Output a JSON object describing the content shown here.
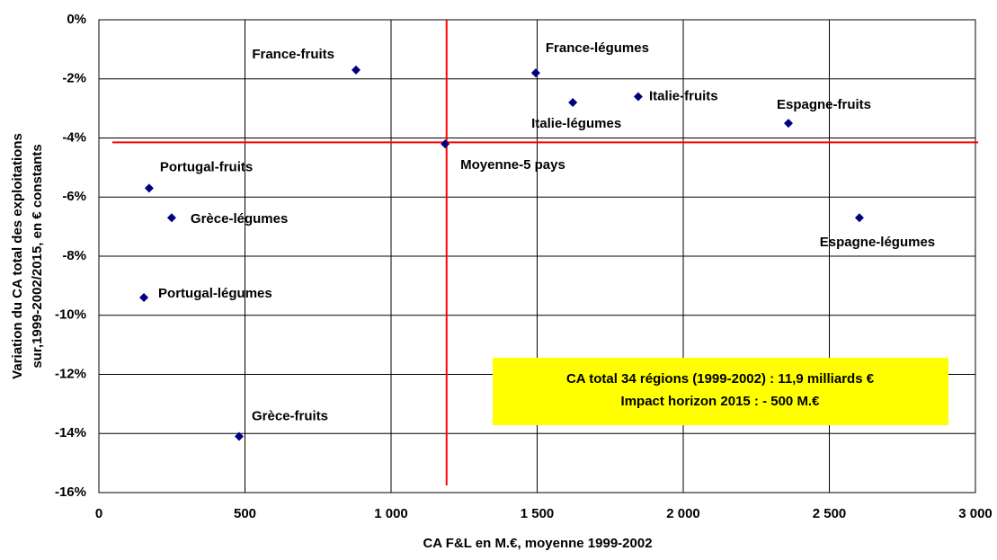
{
  "chart_data": {
    "type": "scatter",
    "xlabel": "CA F&L en M.€, moyenne 1999-2002",
    "ylabel": [
      "Variation du CA total des exploitations",
      "sur,1999-2002/2015, en € constants"
    ],
    "series": [
      {
        "color": "#000080",
        "labels": [
          "France-fruits",
          "France-légumes",
          "Italie-légumes",
          "Italie-fruits",
          "Espagne-fruits",
          "Moyenne-5 pays",
          "Portugal-fruits",
          "Grèce-légumes",
          "Espagne-légumes",
          "Portugal-légumes",
          "Grèce-fruits"
        ],
        "x": [
          880,
          1495,
          1622,
          1846,
          2360,
          1185,
          172,
          249,
          2603,
          154,
          480
        ],
        "values": [
          -1.7,
          -1.8,
          -2.8,
          -2.6,
          -3.5,
          -4.2,
          -5.7,
          -6.7,
          -6.7,
          -9.4,
          -14.1
        ]
      }
    ],
    "reference_lines": {
      "color": "#ff0000",
      "x": 1190,
      "y": -4.15
    },
    "annotation": [
      "CA total 34 régions (1999-2002) : 11,9 milliards €",
      "Impact horizon 2015 : - 500 M.€"
    ],
    "xlim": [
      0,
      3000
    ],
    "xticks": [
      0,
      500,
      {
        "value": 1000,
        "label": "1 000"
      },
      {
        "value": 1500,
        "label": "1 500"
      },
      {
        "value": 2000,
        "label": "2 000"
      },
      {
        "value": 2500,
        "label": "2 500"
      },
      {
        "value": 3000,
        "label": "3 000"
      }
    ],
    "ylim": [
      -16,
      0
    ],
    "yticks": [
      {
        "value": 0,
        "label": "0%"
      },
      {
        "value": -2,
        "label": "-2%"
      },
      {
        "value": -4,
        "label": "-4%"
      },
      {
        "value": -6,
        "label": "-6%"
      },
      {
        "value": -8,
        "label": "-8%"
      },
      {
        "value": -10,
        "label": "-10%"
      },
      {
        "value": -12,
        "label": "-12%"
      },
      {
        "value": -14,
        "label": "-14%"
      },
      {
        "value": -16,
        "label": "-16%"
      }
    ],
    "grid": true
  }
}
